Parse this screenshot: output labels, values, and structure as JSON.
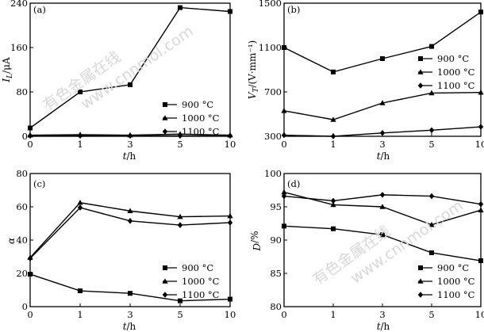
{
  "watermark": {
    "cn": "有色金属在线",
    "url": "www.cnnmol.com"
  },
  "chart_data": [
    {
      "panel": "(a)",
      "type": "line",
      "ylabel_main": "I",
      "ylabel_sub": "L",
      "ylabel_unit": "/μA",
      "xlabel_main": "t",
      "xlabel_unit": "/h",
      "x": [
        "0",
        "1",
        "3",
        "5",
        "10"
      ],
      "xticks": [
        "0",
        "1",
        "3",
        "5",
        "10"
      ],
      "ylim": [
        0,
        240
      ],
      "yticks": [
        "0",
        "80",
        "160",
        "240"
      ],
      "legend_position": "center-right",
      "series": [
        {
          "name": "900 °C",
          "marker": "square",
          "values": [
            15,
            80,
            93,
            232,
            225
          ]
        },
        {
          "name": "1000 °C",
          "marker": "triangle",
          "values": [
            2,
            3,
            2,
            4,
            2
          ]
        },
        {
          "name": "1100 °C",
          "marker": "diamond",
          "values": [
            1,
            1,
            1,
            1,
            1
          ]
        }
      ]
    },
    {
      "panel": "(b)",
      "type": "line",
      "ylabel_main": "V",
      "ylabel_sub": "T",
      "ylabel_unit": "/(V·mm⁻¹)",
      "xlabel_main": "t",
      "xlabel_unit": "/h",
      "x": [
        "0",
        "1",
        "3",
        "5",
        "10"
      ],
      "xticks": [
        "0",
        "1",
        "3",
        "5",
        "10"
      ],
      "ylim": [
        300,
        1500
      ],
      "yticks": [
        "300",
        "700",
        "1100",
        "1500"
      ],
      "legend_position": "center-right",
      "series": [
        {
          "name": "900 °C",
          "marker": "square",
          "values": [
            1100,
            880,
            1000,
            1110,
            1420
          ]
        },
        {
          "name": "1000 °C",
          "marker": "triangle",
          "values": [
            530,
            450,
            600,
            690,
            695
          ]
        },
        {
          "name": "1100 °C",
          "marker": "diamond",
          "values": [
            310,
            300,
            330,
            355,
            385
          ]
        }
      ]
    },
    {
      "panel": "(c)",
      "type": "line",
      "ylabel_main": "α",
      "ylabel_sub": "",
      "ylabel_unit": "",
      "xlabel_main": "t",
      "xlabel_unit": "/h",
      "x": [
        "0",
        "1",
        "3",
        "5",
        "10"
      ],
      "xticks": [
        "0",
        "1",
        "3",
        "5",
        "10"
      ],
      "ylim": [
        0,
        80
      ],
      "yticks": [
        "0",
        "20",
        "40",
        "60",
        "80"
      ],
      "legend_position": "bottom-right",
      "series": [
        {
          "name": "900 °C",
          "marker": "square",
          "values": [
            19.5,
            9.5,
            8,
            3.5,
            4.5
          ]
        },
        {
          "name": "1000 °C",
          "marker": "triangle",
          "values": [
            29.5,
            62.5,
            57.5,
            54,
            54.5
          ]
        },
        {
          "name": "1100 °C",
          "marker": "diamond",
          "values": [
            29,
            59.5,
            51.5,
            49,
            50.5
          ]
        }
      ]
    },
    {
      "panel": "(d)",
      "type": "line",
      "ylabel_main": "D",
      "ylabel_sub": "",
      "ylabel_unit": "/%",
      "xlabel_main": "t",
      "xlabel_unit": "/h",
      "x": [
        "0",
        "1",
        "3",
        "5",
        "10"
      ],
      "xticks": [
        "0",
        "1",
        "3",
        "5",
        "10"
      ],
      "ylim": [
        80,
        100
      ],
      "yticks": [
        "80",
        "85",
        "90",
        "95",
        "100"
      ],
      "legend_position": "bottom-right",
      "series": [
        {
          "name": "900 °C",
          "marker": "square",
          "values": [
            92.1,
            91.7,
            90.8,
            88.1,
            86.9
          ]
        },
        {
          "name": "1000 °C",
          "marker": "triangle",
          "values": [
            97.2,
            95.3,
            95,
            92.3,
            94.5
          ]
        },
        {
          "name": "1100 °C",
          "marker": "diamond",
          "values": [
            96.6,
            95.9,
            96.8,
            96.6,
            95.4
          ]
        }
      ]
    }
  ]
}
